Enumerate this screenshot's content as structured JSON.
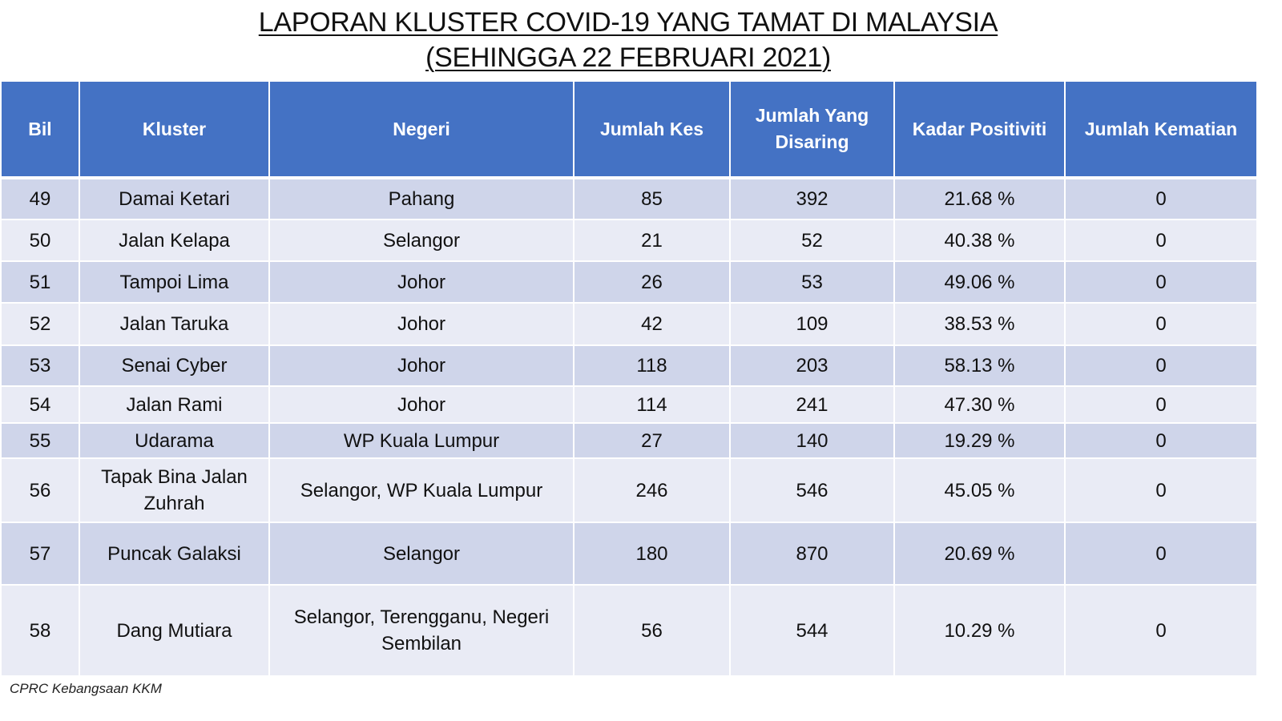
{
  "title": {
    "line1": "LAPORAN KLUSTER COVID-19 YANG TAMAT DI MALAYSIA",
    "line2": "(SEHINGGA  22 FEBRUARI 2021)"
  },
  "table": {
    "headers": [
      "Bil",
      "Kluster",
      "Negeri",
      "Jumlah Kes",
      "Jumlah Yang Disaring",
      "Kadar Positiviti",
      "Jumlah Kematian"
    ],
    "rows": [
      [
        "49",
        "Damai Ketari",
        "Pahang",
        "85",
        "392",
        "21.68 %",
        "0"
      ],
      [
        "50",
        "Jalan Kelapa",
        "Selangor",
        "21",
        "52",
        "40.38 %",
        "0"
      ],
      [
        "51",
        "Tampoi Lima",
        "Johor",
        "26",
        "53",
        "49.06 %",
        "0"
      ],
      [
        "52",
        "Jalan Taruka",
        "Johor",
        "42",
        "109",
        "38.53 %",
        "0"
      ],
      [
        "53",
        "Senai Cyber",
        "Johor",
        "118",
        "203",
        "58.13 %",
        "0"
      ],
      [
        "54",
        "Jalan Rami",
        "Johor",
        "114",
        "241",
        "47.30 %",
        "0"
      ],
      [
        "55",
        "Udarama",
        "WP Kuala Lumpur",
        "27",
        "140",
        "19.29 %",
        "0"
      ],
      [
        "56",
        "Tapak Bina Jalan Zuhrah",
        "Selangor, WP Kuala Lumpur",
        "246",
        "546",
        "45.05 %",
        "0"
      ],
      [
        "57",
        "Puncak Galaksi",
        "Selangor",
        "180",
        "870",
        "20.69 %",
        "0"
      ],
      [
        "58",
        "Dang Mutiara",
        "Selangor, Terengganu, Negeri Sembilan",
        "56",
        "544",
        "10.29 %",
        "0"
      ]
    ]
  },
  "footer": {
    "source": "CPRC Kebangsaan KKM"
  },
  "colors": {
    "header_bg": "#4472c4",
    "row_odd_bg": "#cfd5ea",
    "row_even_bg": "#e9ebf5"
  }
}
